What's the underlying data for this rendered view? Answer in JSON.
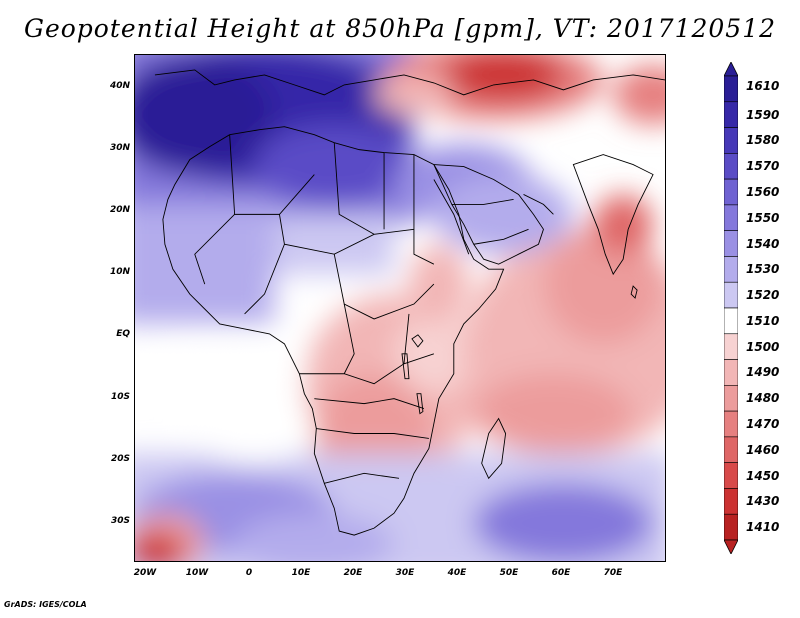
{
  "title": "Geopotential Height at 850hPa [gpm], VT: 2017120512",
  "credit": "GrADS: IGES/COLA",
  "map": {
    "lon_range": [
      -23,
      80
    ],
    "lat_range": [
      -37,
      45
    ],
    "lat_labels": [
      "40N",
      "30N",
      "20N",
      "10N",
      "EQ",
      "10S",
      "20S",
      "30S"
    ],
    "lon_labels": [
      "20W",
      "10W",
      "0",
      "10E",
      "20E",
      "30E",
      "40E",
      "50E",
      "60E",
      "70E"
    ]
  },
  "legend": {
    "levels": [
      "1610",
      "1590",
      "1580",
      "1570",
      "1560",
      "1550",
      "1540",
      "1530",
      "1520",
      "1510",
      "1500",
      "1490",
      "1480",
      "1470",
      "1460",
      "1450",
      "1430",
      "1410"
    ],
    "colors": [
      "#2a1e96",
      "#3628a8",
      "#4638b8",
      "#5a4cc6",
      "#6f62d2",
      "#8478dc",
      "#9a90e4",
      "#b3acec",
      "#ccc8f2",
      "#ffffff",
      "#f7d2d2",
      "#f2b6b6",
      "#ec9c9c",
      "#e68080",
      "#df6666",
      "#d84a4a",
      "#cc3232",
      "#b82222"
    ]
  }
}
